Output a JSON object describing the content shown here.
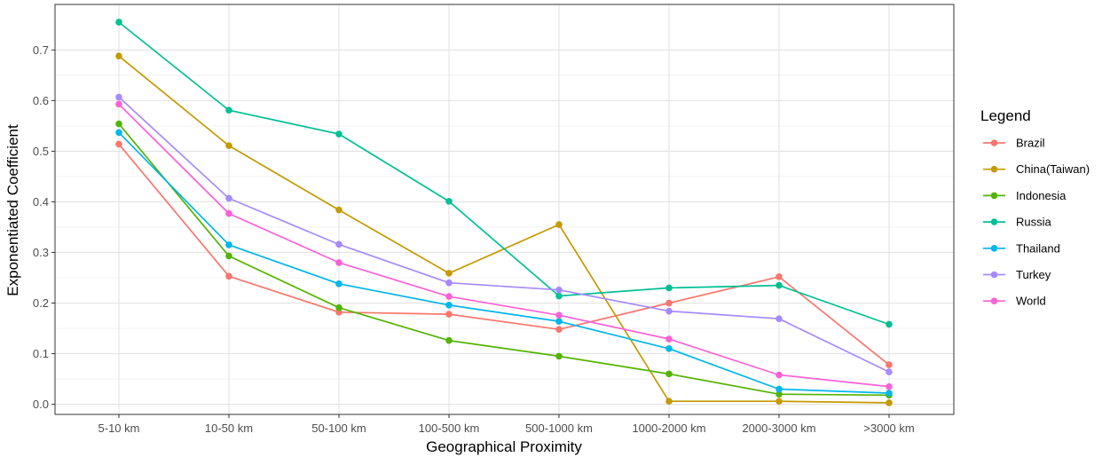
{
  "chart_data": {
    "type": "line",
    "title": "",
    "xlabel": "Geographical Proximity",
    "ylabel": "Exponentiated Coefficient",
    "categories": [
      "5-10 km",
      "10-50 km",
      "50-100 km",
      "100-500 km",
      "500-1000 km",
      "1000-2000 km",
      "2000-3000 km",
      ">3000 km"
    ],
    "ylim": [
      -0.02,
      0.79
    ],
    "yticks": [
      0.0,
      0.1,
      0.2,
      0.3,
      0.4,
      0.5,
      0.6,
      0.7
    ],
    "ytick_labels": [
      "0.0",
      "0.1",
      "0.2",
      "0.3",
      "0.4",
      "0.5",
      "0.6",
      "0.7"
    ],
    "grid": true,
    "legend_title": "Legend",
    "legend_position": "right",
    "series": [
      {
        "name": "Brazil",
        "color": "#F8766D",
        "values": [
          0.514,
          0.253,
          0.182,
          0.178,
          0.148,
          0.2,
          0.252,
          0.078
        ]
      },
      {
        "name": "China(Taiwan)",
        "color": "#C49A00",
        "values": [
          0.688,
          0.511,
          0.384,
          0.259,
          0.355,
          0.006,
          0.006,
          0.003
        ]
      },
      {
        "name": "Indonesia",
        "color": "#53B400",
        "values": [
          0.554,
          0.293,
          0.191,
          0.126,
          0.095,
          0.06,
          0.02,
          0.018
        ]
      },
      {
        "name": "Russia",
        "color": "#00C094",
        "values": [
          0.755,
          0.581,
          0.534,
          0.401,
          0.214,
          0.23,
          0.235,
          0.158
        ]
      },
      {
        "name": "Thailand",
        "color": "#00B6EB",
        "values": [
          0.537,
          0.315,
          0.238,
          0.196,
          0.164,
          0.11,
          0.03,
          0.022
        ]
      },
      {
        "name": "Turkey",
        "color": "#A58AFF",
        "values": [
          0.607,
          0.407,
          0.316,
          0.24,
          0.226,
          0.184,
          0.169,
          0.064
        ]
      },
      {
        "name": "World",
        "color": "#FB61D7",
        "values": [
          0.593,
          0.377,
          0.28,
          0.213,
          0.176,
          0.129,
          0.058,
          0.035
        ]
      }
    ]
  }
}
